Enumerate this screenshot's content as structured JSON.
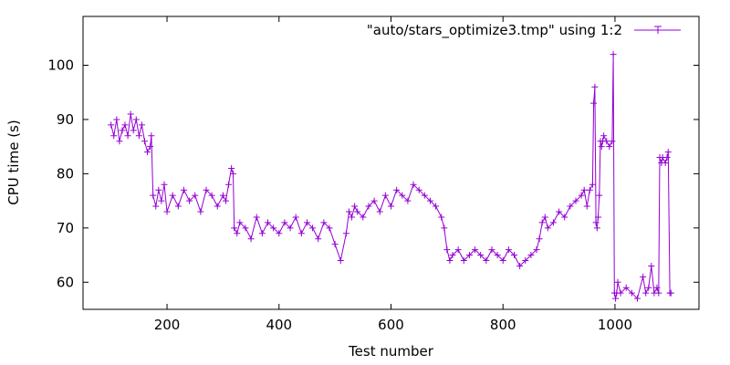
{
  "chart_data": {
    "type": "line",
    "title": "",
    "xlabel": "Test number",
    "ylabel": "CPU time (s)",
    "xlim": [
      50,
      1150
    ],
    "ylim": [
      55,
      109
    ],
    "xticks": [
      200,
      400,
      600,
      800,
      1000
    ],
    "yticks": [
      60,
      70,
      80,
      90,
      100
    ],
    "grid": false,
    "legend_position": "top-right",
    "point_marker": "plus",
    "series": [
      {
        "name": "\"auto/stars_optimize3.tmp\" using 1:2",
        "color": "#9400d3",
        "x": [
          100,
          105,
          110,
          115,
          120,
          125,
          130,
          135,
          140,
          145,
          150,
          155,
          160,
          165,
          170,
          172,
          175,
          180,
          185,
          190,
          195,
          200,
          210,
          220,
          230,
          240,
          250,
          260,
          270,
          280,
          290,
          300,
          305,
          310,
          315,
          318,
          320,
          325,
          330,
          340,
          350,
          360,
          370,
          380,
          390,
          400,
          410,
          420,
          430,
          440,
          450,
          460,
          470,
          480,
          490,
          500,
          510,
          520,
          525,
          530,
          535,
          540,
          550,
          560,
          570,
          580,
          590,
          600,
          610,
          620,
          630,
          640,
          650,
          660,
          670,
          680,
          690,
          695,
          700,
          705,
          710,
          720,
          730,
          740,
          750,
          760,
          770,
          780,
          790,
          800,
          810,
          820,
          830,
          840,
          850,
          860,
          865,
          870,
          875,
          880,
          890,
          900,
          910,
          920,
          930,
          940,
          945,
          950,
          955,
          960,
          962,
          964,
          966,
          968,
          970,
          972,
          974,
          976,
          978,
          980,
          985,
          990,
          995,
          997,
          999,
          1001,
          1003,
          1005,
          1010,
          1020,
          1030,
          1040,
          1050,
          1055,
          1060,
          1065,
          1070,
          1075,
          1078,
          1080,
          1083,
          1085,
          1090,
          1093,
          1095,
          1098,
          1100
        ],
        "y": [
          89,
          87,
          90,
          86,
          88,
          89,
          87,
          91,
          88,
          90,
          87,
          89,
          86,
          84,
          85,
          87,
          76,
          74,
          77,
          75,
          78,
          73,
          76,
          74,
          77,
          75,
          76,
          73,
          77,
          76,
          74,
          76,
          75,
          78,
          81,
          80,
          70,
          69,
          71,
          70,
          68,
          72,
          69,
          71,
          70,
          69,
          71,
          70,
          72,
          69,
          71,
          70,
          68,
          71,
          70,
          67,
          64,
          69,
          73,
          72,
          74,
          73,
          72,
          74,
          75,
          73,
          76,
          74,
          77,
          76,
          75,
          78,
          77,
          76,
          75,
          74,
          72,
          70,
          66,
          64,
          65,
          66,
          64,
          65,
          66,
          65,
          64,
          66,
          65,
          64,
          66,
          65,
          63,
          64,
          65,
          66,
          68,
          71,
          72,
          70,
          71,
          73,
          72,
          74,
          75,
          76,
          77,
          74,
          77,
          78,
          93,
          96,
          71,
          70,
          72,
          76,
          86,
          85,
          86,
          87,
          86,
          85,
          86,
          102,
          58,
          57,
          58,
          60,
          58,
          59,
          58,
          57,
          61,
          58,
          59,
          63,
          58,
          59,
          58,
          83,
          82,
          83,
          82,
          83,
          84,
          58,
          58
        ]
      }
    ]
  }
}
